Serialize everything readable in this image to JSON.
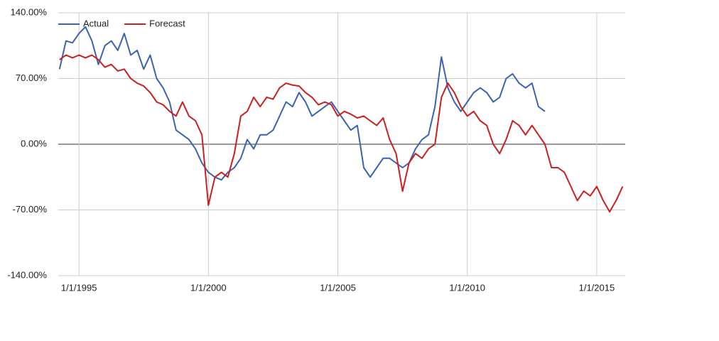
{
  "chart_data": {
    "type": "line",
    "x": [
      1994.25,
      1994.5,
      1994.75,
      1995,
      1995.25,
      1995.5,
      1995.75,
      1996,
      1996.25,
      1996.5,
      1996.75,
      1997,
      1997.25,
      1997.5,
      1997.75,
      1998,
      1998.25,
      1998.5,
      1998.75,
      1999,
      1999.25,
      1999.5,
      1999.75,
      2000,
      2000.25,
      2000.5,
      2000.75,
      2001,
      2001.25,
      2001.5,
      2001.75,
      2002,
      2002.25,
      2002.5,
      2002.75,
      2003,
      2003.25,
      2003.5,
      2003.75,
      2004,
      2004.25,
      2004.5,
      2004.75,
      2005,
      2005.25,
      2005.5,
      2005.75,
      2006,
      2006.25,
      2006.5,
      2006.75,
      2007,
      2007.25,
      2007.5,
      2007.75,
      2008,
      2008.25,
      2008.5,
      2008.75,
      2009,
      2009.25,
      2009.5,
      2009.75,
      2010,
      2010.25,
      2010.5,
      2010.75,
      2011,
      2011.25,
      2011.5,
      2011.75,
      2012,
      2012.25,
      2012.5,
      2012.75,
      2013,
      2013.25,
      2013.5,
      2013.75,
      2014,
      2014.25,
      2014.5,
      2014.75,
      2015,
      2015.25,
      2015.5,
      2015.75,
      2016
    ],
    "series": [
      {
        "name": "Actual",
        "color": "#3c62b4",
        "values": [
          80,
          110,
          108,
          118,
          125,
          110,
          85,
          105,
          110,
          100,
          118,
          95,
          100,
          80,
          95,
          70,
          60,
          45,
          15,
          10,
          5,
          -5,
          -20,
          -30,
          -35,
          -38,
          -30,
          -25,
          -15,
          5,
          -5,
          10,
          10,
          15,
          30,
          45,
          40,
          55,
          45,
          30,
          35,
          40,
          45,
          35,
          25,
          15,
          20,
          -25,
          -35,
          -25,
          -15,
          -15,
          -20,
          -25,
          -20,
          -5,
          5,
          10,
          40,
          93,
          60,
          45,
          35,
          45,
          55,
          60,
          55,
          45,
          50,
          70,
          75,
          65,
          60,
          65,
          40,
          35,
          null,
          null,
          null,
          null,
          null,
          null,
          null,
          null,
          null,
          null,
          null,
          null
        ]
      },
      {
        "name": "Forecast",
        "color": "#cc1f1f",
        "values": [
          90,
          95,
          92,
          95,
          92,
          95,
          90,
          82,
          85,
          78,
          80,
          70,
          65,
          62,
          55,
          45,
          42,
          35,
          30,
          45,
          30,
          25,
          10,
          -65,
          -35,
          -30,
          -35,
          -10,
          30,
          35,
          50,
          40,
          50,
          48,
          60,
          65,
          63,
          62,
          55,
          50,
          42,
          45,
          42,
          30,
          35,
          32,
          28,
          30,
          25,
          20,
          28,
          5,
          -10,
          -50,
          -20,
          -10,
          -15,
          -5,
          0,
          50,
          65,
          55,
          40,
          30,
          35,
          25,
          20,
          0,
          -10,
          5,
          25,
          20,
          10,
          20,
          10,
          0,
          -25,
          -25,
          -30,
          -45,
          -60,
          -50,
          -55,
          -45,
          -60,
          -72,
          -60,
          -45
        ]
      }
    ],
    "xlim": [
      1994.2,
      2016.1
    ],
    "xticks": [
      {
        "value": 1995,
        "label": "1/1/1995"
      },
      {
        "value": 2000,
        "label": "1/1/2000"
      },
      {
        "value": 2005,
        "label": "1/1/2005"
      },
      {
        "value": 2010,
        "label": "1/1/2010"
      },
      {
        "value": 2015,
        "label": "1/1/2015"
      }
    ],
    "ylim": [
      -140,
      140
    ],
    "yticks": [
      {
        "value": -140,
        "label": "-140.00%"
      },
      {
        "value": -70,
        "label": "-70.00%"
      },
      {
        "value": 0,
        "label": "0.00%"
      },
      {
        "value": 70,
        "label": "70.00%"
      },
      {
        "value": 140,
        "label": "140.00%"
      }
    ],
    "grid": true,
    "legend": "top-left"
  }
}
